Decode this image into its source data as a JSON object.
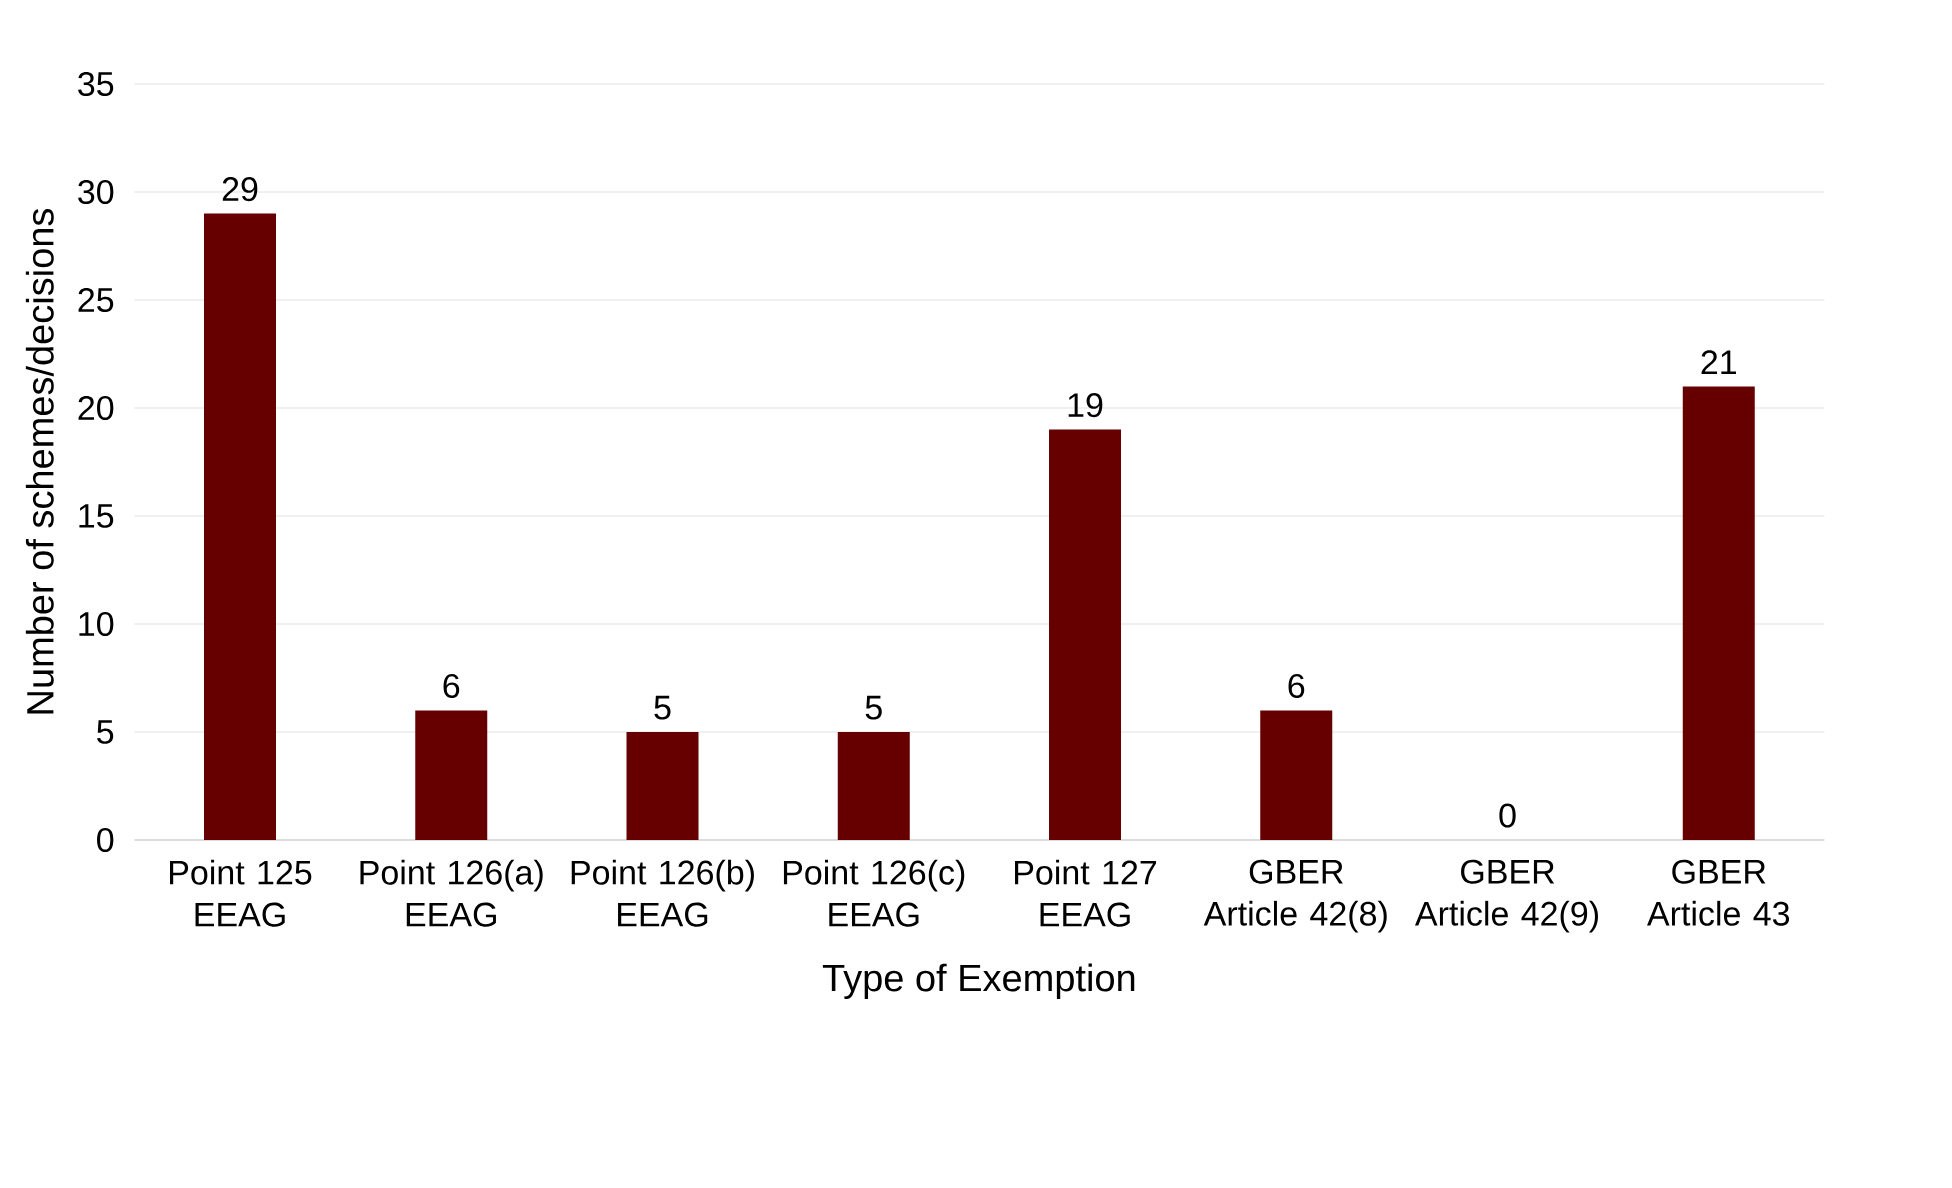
{
  "chart_data": {
    "type": "bar",
    "xlabel": "Type of Exemption",
    "ylabel": "Number of schemes/decisions",
    "categories": [
      "Point 125 EEAG",
      "Point 126(a) EEAG",
      "Point 126(b) EEAG",
      "Point 126(c) EEAG",
      "Point 127 EEAG",
      "GBER Article 42(8)",
      "GBER Article 42(9)",
      "GBER Article 43"
    ],
    "values": [
      29,
      6,
      5,
      5,
      19,
      6,
      0,
      21
    ],
    "color": "#660000",
    "ylim": [
      0,
      35
    ],
    "yticks": [
      0,
      5,
      10,
      15,
      20,
      25,
      30,
      35
    ],
    "grid": "y",
    "data_labels": true
  }
}
